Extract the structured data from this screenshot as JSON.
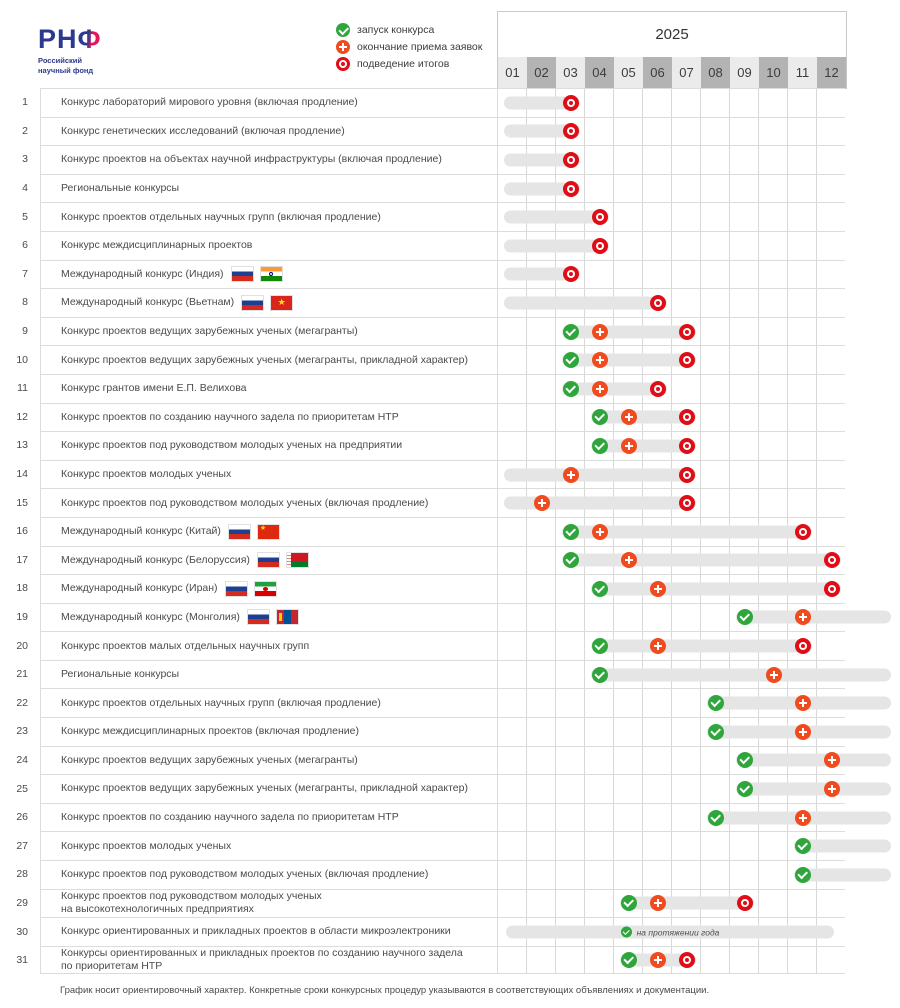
{
  "logo": {
    "text_rn": "РН",
    "text_f": "Ф",
    "subtitle_line1": "Российский",
    "subtitle_line2": "научный фонд"
  },
  "legend": {
    "items": [
      {
        "icon": "start-marker-icon",
        "type": "s",
        "label": "запуск конкурса"
      },
      {
        "icon": "deadline-marker-icon",
        "type": "d",
        "label": "окончание приема заявок"
      },
      {
        "icon": "results-marker-icon",
        "type": "r",
        "label": "подведение итогов"
      }
    ]
  },
  "colors": {
    "start": "#2fa63c",
    "deadline": "#f04a1f",
    "results": "#e00d16",
    "bar": "#e5e5e5",
    "month_light": "#ebebeb",
    "month_dark": "#b3b3b3"
  },
  "chart_data": {
    "type": "bar",
    "variant": "gantt-timeline",
    "title": "2025",
    "months": [
      "01",
      "02",
      "03",
      "04",
      "05",
      "06",
      "07",
      "08",
      "09",
      "10",
      "11",
      "12"
    ],
    "annual_note": "на протяжении года",
    "legend_note": "bar_start 0 = carried over from previous year; bar_end 13 = continues past December; months are 1-12",
    "rows": [
      {
        "num": "1",
        "label": "Конкурс лабораторий мирового уровня (включая продление)",
        "flags": [],
        "bar": [
          0,
          3
        ],
        "launch": null,
        "deadline": null,
        "results": 3
      },
      {
        "num": "2",
        "label": "Конкурс генетических исследований (включая продление)",
        "flags": [],
        "bar": [
          0,
          3
        ],
        "launch": null,
        "deadline": null,
        "results": 3
      },
      {
        "num": "3",
        "label": "Конкурс проектов на объектах научной инфраструктуры (включая продление)",
        "flags": [],
        "bar": [
          0,
          3
        ],
        "launch": null,
        "deadline": null,
        "results": 3
      },
      {
        "num": "4",
        "label": "Региональные конкурсы",
        "flags": [],
        "bar": [
          0,
          3
        ],
        "launch": null,
        "deadline": null,
        "results": 3
      },
      {
        "num": "5",
        "label": "Конкурс проектов отдельных научных групп (включая продление)",
        "flags": [],
        "bar": [
          0,
          4
        ],
        "launch": null,
        "deadline": null,
        "results": 4
      },
      {
        "num": "6",
        "label": "Конкурс междисциплинарных проектов",
        "flags": [],
        "bar": [
          0,
          4
        ],
        "launch": null,
        "deadline": null,
        "results": 4
      },
      {
        "num": "7",
        "label": "Международный конкурс (Индия)",
        "flags": [
          "ru",
          "in"
        ],
        "bar": [
          0,
          3
        ],
        "launch": null,
        "deadline": null,
        "results": 3
      },
      {
        "num": "8",
        "label": "Международный конкурс (Вьетнам)",
        "flags": [
          "ru",
          "vn"
        ],
        "bar": [
          0,
          6
        ],
        "launch": null,
        "deadline": null,
        "results": 6
      },
      {
        "num": "9",
        "label": "Конкурс проектов ведущих зарубежных ученых (мегагранты)",
        "flags": [],
        "bar": [
          3,
          7
        ],
        "launch": 3,
        "deadline": 4,
        "results": 7
      },
      {
        "num": "10",
        "label": "Конкурс проектов ведущих зарубежных ученых (мегагранты, прикладной характер)",
        "flags": [],
        "bar": [
          3,
          7
        ],
        "launch": 3,
        "deadline": 4,
        "results": 7
      },
      {
        "num": "11",
        "label": "Конкурс грантов имени Е.П. Велихова",
        "flags": [],
        "bar": [
          3,
          6
        ],
        "launch": 3,
        "deadline": 4,
        "results": 6
      },
      {
        "num": "12",
        "label": "Конкурс проектов по созданию научного задела по приоритетам НТР",
        "flags": [],
        "bar": [
          4,
          7
        ],
        "launch": 4,
        "deadline": 5,
        "results": 7
      },
      {
        "num": "13",
        "label": "Конкурс проектов под руководством молодых ученых на предприятии",
        "flags": [],
        "bar": [
          4,
          7
        ],
        "launch": 4,
        "deadline": 5,
        "results": 7
      },
      {
        "num": "14",
        "label": "Конкурс проектов молодых ученых",
        "flags": [],
        "bar": [
          0,
          7
        ],
        "launch": null,
        "deadline": 3,
        "results": 7
      },
      {
        "num": "15",
        "label": "Конкурс проектов под руководством молодых ученых (включая продление)",
        "flags": [],
        "bar": [
          0,
          7
        ],
        "launch": null,
        "deadline": 2,
        "results": 7
      },
      {
        "num": "16",
        "label": "Международный конкурс (Китай)",
        "flags": [
          "ru",
          "cn"
        ],
        "bar": [
          3,
          11
        ],
        "launch": 3,
        "deadline": 4,
        "results": 11
      },
      {
        "num": "17",
        "label": "Международный конкурс (Белоруссия)",
        "flags": [
          "ru",
          "by"
        ],
        "bar": [
          3,
          12
        ],
        "launch": 3,
        "deadline": 5,
        "results": 12
      },
      {
        "num": "18",
        "label": "Международный конкурс (Иран)",
        "flags": [
          "ru",
          "ir"
        ],
        "bar": [
          4,
          12
        ],
        "launch": 4,
        "deadline": 6,
        "results": 12
      },
      {
        "num": "19",
        "label": "Международный конкурс (Монголия)",
        "flags": [
          "ru",
          "mn"
        ],
        "bar": [
          9,
          13
        ],
        "launch": 9,
        "deadline": 11,
        "results": null
      },
      {
        "num": "20",
        "label": "Конкурс проектов малых отдельных научных групп",
        "flags": [],
        "bar": [
          4,
          11
        ],
        "launch": 4,
        "deadline": 6,
        "results": 11
      },
      {
        "num": "21",
        "label": "Региональные конкурсы",
        "flags": [],
        "bar": [
          4,
          13
        ],
        "launch": 4,
        "deadline": 10,
        "results": null
      },
      {
        "num": "22",
        "label": "Конкурс проектов отдельных научных групп (включая продление)",
        "flags": [],
        "bar": [
          8,
          13
        ],
        "launch": 8,
        "deadline": 11,
        "results": null
      },
      {
        "num": "23",
        "label": "Конкурс междисциплинарных проектов (включая продление)",
        "flags": [],
        "bar": [
          8,
          13
        ],
        "launch": 8,
        "deadline": 11,
        "results": null
      },
      {
        "num": "24",
        "label": "Конкурс проектов ведущих зарубежных ученых (мегагранты)",
        "flags": [],
        "bar": [
          9,
          13
        ],
        "launch": 9,
        "deadline": 12,
        "results": null
      },
      {
        "num": "25",
        "label": "Конкурс проектов ведущих зарубежных ученых (мегагранты, прикладной характер)",
        "flags": [],
        "bar": [
          9,
          13
        ],
        "launch": 9,
        "deadline": 12,
        "results": null
      },
      {
        "num": "26",
        "label": "Конкурс проектов по созданию научного задела по приоритетам НТР",
        "flags": [],
        "bar": [
          8,
          13
        ],
        "launch": 8,
        "deadline": 11,
        "results": null
      },
      {
        "num": "27",
        "label": "Конкурс проектов молодых ученых",
        "flags": [],
        "bar": [
          11,
          13
        ],
        "launch": 11,
        "deadline": null,
        "results": null
      },
      {
        "num": "28",
        "label": "Конкурс проектов под руководством молодых ученых (включая продление)",
        "flags": [],
        "bar": [
          11,
          13
        ],
        "launch": 11,
        "deadline": null,
        "results": null
      },
      {
        "num": "29",
        "label": "Конкурс проектов под руководством молодых ученых",
        "label2": "на высокотехнологичных предприятиях",
        "flags": [],
        "bar": [
          5,
          9
        ],
        "launch": 5,
        "deadline": 6,
        "results": 9
      },
      {
        "num": "30",
        "label": "Конкурс ориентированных и прикладных проектов в области микроэлектроники",
        "flags": [],
        "annual": true
      },
      {
        "num": "31",
        "label": "Конкурсы ориентированных и прикладных проектов по созданию научного задела",
        "label2": "по приоритетам НТР",
        "flags": [],
        "bar": [
          5,
          7
        ],
        "launch": 5,
        "deadline": 6,
        "results": 7
      }
    ]
  },
  "footnote": "График носит ориентировочный характер. Конкретные сроки конкурсных процедур указываются в соответствующих объявлениях и документации."
}
